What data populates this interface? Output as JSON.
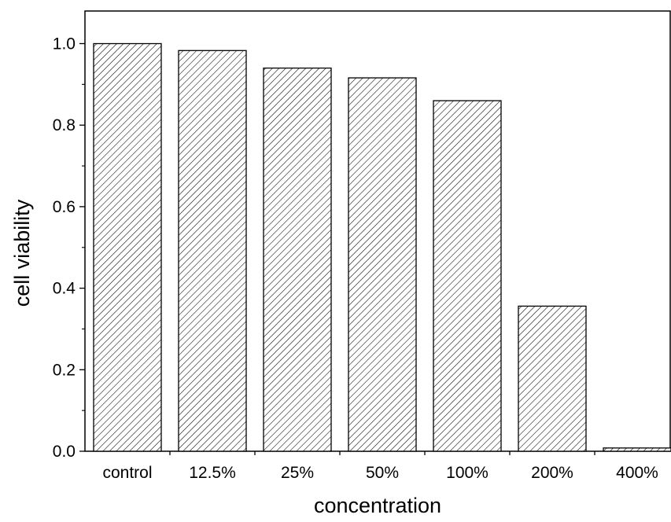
{
  "chart_data": {
    "type": "bar",
    "title": "",
    "xlabel": "concentration",
    "ylabel": "cell viability",
    "categories": [
      "control",
      "12.5%",
      "25%",
      "50%",
      "100%",
      "200%",
      "400%"
    ],
    "values": [
      1.0,
      0.983,
      0.94,
      0.916,
      0.86,
      0.356,
      0.008
    ],
    "ylim": [
      0.0,
      1.08
    ],
    "yticks": [
      0.0,
      0.2,
      0.4,
      0.6,
      0.8,
      1.0
    ],
    "ytick_labels": [
      "0.0",
      "0.2",
      "0.4",
      "0.6",
      "0.8",
      "1.0"
    ],
    "bar_fill": "hatched",
    "bar_color": "#000000",
    "background": "#ffffff",
    "grid": false,
    "legend": "none"
  }
}
